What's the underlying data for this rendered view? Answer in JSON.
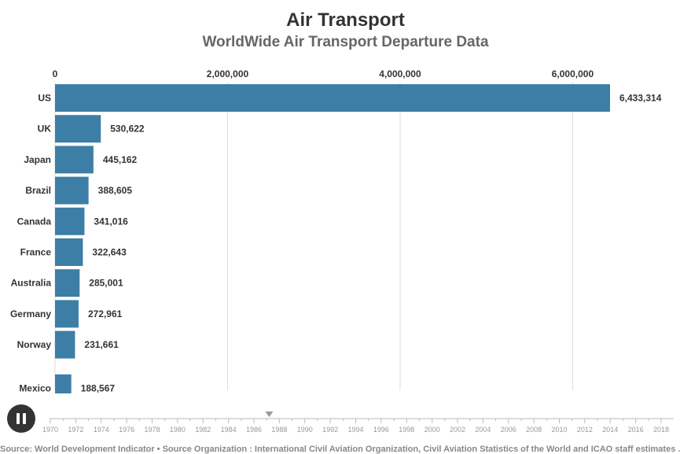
{
  "title": "Air Transport",
  "subtitle": "WorldWide Air Transport Departure Data",
  "source": "Source: World Development Indicator • Source Organization : International Civil Aviation Organization, Civil Aviation Statistics of the World and ICAO staff estimates .",
  "colors": {
    "bar": "#3d7ea6",
    "grid": "#dddddd",
    "text": "#333333",
    "subtitle": "#666666"
  },
  "controls": {
    "pause_icon": "pause-icon"
  },
  "chart_data": {
    "type": "bar",
    "orientation": "horizontal",
    "title": "Air Transport",
    "subtitle": "WorldWide Air Transport Departure Data",
    "xlim": [
      0,
      6433314
    ],
    "x_ticks": [
      {
        "value": 0,
        "label": "0"
      },
      {
        "value": 2000000,
        "label": "2,000,000"
      },
      {
        "value": 4000000,
        "label": "4,000,000"
      },
      {
        "value": 6000000,
        "label": "6,000,000"
      }
    ],
    "x_axis_position": "top",
    "grid": true,
    "categories": [
      "US",
      "UK",
      "Japan",
      "Brazil",
      "Canada",
      "France",
      "Australia",
      "Germany",
      "Norway",
      "Mexico"
    ],
    "values": [
      6433314,
      530622,
      445162,
      388605,
      341016,
      322643,
      285001,
      272961,
      231661,
      188567
    ],
    "value_labels": [
      "6,433,314",
      "530,622",
      "445,162",
      "388,605",
      "341,016",
      "322,643",
      "285,001",
      "272,961",
      "231,661",
      "188,567"
    ]
  },
  "timeline": {
    "years": [
      "1970",
      "1972",
      "1974",
      "1976",
      "1978",
      "1980",
      "1982",
      "1984",
      "1986",
      "1988",
      "1990",
      "1992",
      "1994",
      "1996",
      "1998",
      "2000",
      "2002",
      "2004",
      "2006",
      "2008",
      "2010",
      "2012",
      "2014",
      "2016",
      "2018"
    ],
    "min_year": 1970,
    "max_year": 2018,
    "current_year": 1987.2
  }
}
